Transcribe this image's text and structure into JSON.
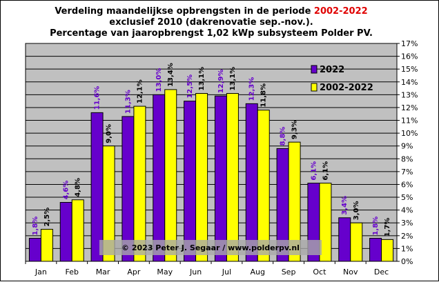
{
  "chart_data": {
    "type": "bar",
    "title": {
      "line1_prefix": "Verdeling maandelijkse opbrengsten in de periode ",
      "line1_highlight": "2002-2022",
      "line2": "exclusief 2010 (dakrenovatie sep.-nov.).",
      "line3": "Percentage van jaaropbrengst 1,02 kWp subsysteem Polder PV."
    },
    "categories": [
      "Jan",
      "Feb",
      "Mar",
      "Apr",
      "May",
      "Jun",
      "Jul",
      "Aug",
      "Sep",
      "Oct",
      "Nov",
      "Dec"
    ],
    "series": [
      {
        "name": "2022",
        "color": "#6600cc",
        "label_color": "#6600cc",
        "values": [
          1.8,
          4.6,
          11.6,
          11.3,
          13.0,
          12.5,
          12.9,
          12.3,
          8.8,
          6.1,
          3.4,
          1.8
        ],
        "labels": [
          "1,8%",
          "4,6%",
          "11,6%",
          "11,3%",
          "13,0%",
          "12,5%",
          "12,9%",
          "12,3%",
          "8,8%",
          "6,1%",
          "3,4%",
          "1,8%"
        ]
      },
      {
        "name": "2002-2022",
        "color": "#ffff00",
        "label_color": "#000000",
        "values": [
          2.5,
          4.8,
          9.0,
          12.1,
          13.4,
          13.1,
          13.1,
          11.8,
          9.3,
          6.1,
          3.0,
          1.7
        ],
        "labels": [
          "2,5%",
          "4,8%",
          "9,0%",
          "12,1%",
          "13,4%",
          "13,1%",
          "13,1%",
          "11,8%",
          "9,3%",
          "6,1%",
          "3,0%",
          "1,7%"
        ]
      }
    ],
    "y_ticks": [
      "0%",
      "1%",
      "2%",
      "3%",
      "4%",
      "5%",
      "6%",
      "7%",
      "8%",
      "9%",
      "10%",
      "11%",
      "12%",
      "13%",
      "14%",
      "15%",
      "16%",
      "17%"
    ],
    "ylim": [
      0,
      17
    ],
    "y_axis_side": "right",
    "grid": true,
    "plot_background": "#c0c0c0",
    "legend_position": "top-right",
    "copyright": "© 2023 Peter J. Segaar / www.polderpv.nl"
  }
}
